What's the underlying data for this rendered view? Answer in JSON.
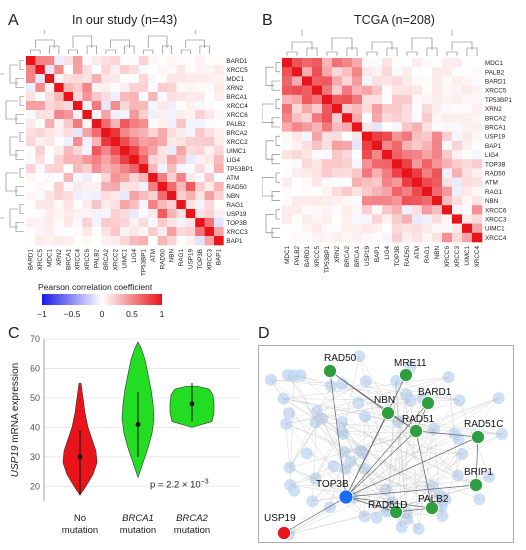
{
  "panels": {
    "a": {
      "letter": "A",
      "title": "In our study (n=43)"
    },
    "b": {
      "letter": "B",
      "title": "TCGA (n=208)"
    },
    "c": {
      "letter": "C"
    },
    "d": {
      "letter": "D"
    }
  },
  "heatmap_a": {
    "row_labels": [
      "BARD1",
      "XRCC5",
      "MDC1",
      "XRN2",
      "BRCA1",
      "XRCC4",
      "XRCC6",
      "PALB2",
      "BRCA2",
      "XRCC2",
      "UIMC1",
      "LIG4",
      "TP53BP1",
      "ATM",
      "RAD50",
      "NBN",
      "RAG1",
      "USP19",
      "TOP3B",
      "XRCC3",
      "BAP1"
    ],
    "col_labels": [
      "BARD1",
      "XRCC5",
      "MDC1",
      "XRN2",
      "BRCA1",
      "XRCC4",
      "XRCC6",
      "PALB2",
      "BRCA2",
      "XRCC2",
      "UIMC1",
      "LIG4",
      "TP53BP1",
      "ATM",
      "RAD50",
      "NBN",
      "RAG1",
      "USP19",
      "TOP3B",
      "XRCC3",
      "BAP1"
    ]
  },
  "heatmap_b": {
    "row_labels": [
      "MDC1",
      "PALB2",
      "BARD1",
      "XRCC5",
      "TP53BP1",
      "XRN2",
      "BRCA2",
      "BRCA1",
      "USP19",
      "BAP1",
      "LIG4",
      "TOP3B",
      "RAD50",
      "ATM",
      "RAG1",
      "NBN",
      "XRCC6",
      "XRCC3",
      "UIMC1",
      "XRCC4"
    ],
    "col_labels": [
      "MDC1",
      "PALB2",
      "BARD1",
      "XRCC5",
      "TP53BP1",
      "XRN2",
      "BRCA2",
      "BRCA1",
      "USP19",
      "BAP1",
      "LIG4",
      "TOP3B",
      "RAD50",
      "ATM",
      "RAG1",
      "NBN",
      "XRCC6",
      "XRCC3",
      "UIMC1",
      "XRCC4"
    ]
  },
  "legend": {
    "title": "Pearson correlation coefficient",
    "ticks": [
      "−1",
      "−0.5",
      "0",
      "0.5",
      "1"
    ],
    "colors": {
      "low": "#1a1ae6",
      "mid": "#ffffff",
      "high": "#e8141a"
    }
  },
  "chart_data": {
    "type": "violin",
    "ylabel_italic": "USP19",
    "ylabel_rest": " mRNA expression",
    "ylim": [
      15,
      70
    ],
    "yticks": [
      "20",
      "30",
      "40",
      "50",
      "60",
      "70"
    ],
    "groups": [
      {
        "label_italic": "",
        "label_line1": "No",
        "label_line2": "mutation",
        "color": "#e8141a",
        "median": 30,
        "lower": 17,
        "upper": 39
      },
      {
        "label_italic": "BRCA1",
        "label_line1": "",
        "label_line2": "mutation",
        "color": "#22dd22",
        "median": 41,
        "lower": 30,
        "upper": 52
      },
      {
        "label_italic": "BRCA2",
        "label_line1": "",
        "label_line2": "mutation",
        "color": "#22dd22",
        "median": 48,
        "lower": 42,
        "upper": 55
      }
    ],
    "pvalue_prefix": "p = 2.2 × 10",
    "pvalue_exp": "−3"
  },
  "network": {
    "nodes": [
      {
        "label": "RAD50",
        "color": "#2e9e3e"
      },
      {
        "label": "MRE11",
        "color": "#2e9e3e"
      },
      {
        "label": "BARD1",
        "color": "#2e9e3e"
      },
      {
        "label": "NBN",
        "color": "#2e9e3e"
      },
      {
        "label": "RAD51",
        "color": "#2e9e3e"
      },
      {
        "label": "RAD51C",
        "color": "#2e9e3e"
      },
      {
        "label": "BRIP1",
        "color": "#2e9e3e"
      },
      {
        "label": "TOP3B",
        "color": "#1a6cf0"
      },
      {
        "label": "RAD51D",
        "color": "#2e9e3e"
      },
      {
        "label": "PALB2",
        "color": "#2e9e3e"
      },
      {
        "label": "USP19",
        "color": "#e8141a"
      }
    ]
  }
}
